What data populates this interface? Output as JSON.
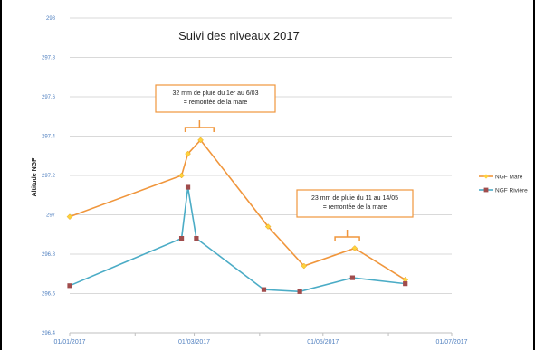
{
  "chart_data": {
    "type": "line",
    "title": "Suivi des niveaux 2017",
    "xlabel": "",
    "ylabel": "Altitude NGF",
    "x_ticks": [
      "01/01/2017",
      "01/03/2017",
      "01/05/2017",
      "01/07/2017"
    ],
    "xlim": [
      "2017-01-01",
      "2017-07-01"
    ],
    "ylim": [
      296.4,
      298
    ],
    "y_ticks": [
      "296.4",
      "296.6",
      "296.8",
      "297",
      "297.2",
      "297.4",
      "297.6",
      "297.8",
      "298"
    ],
    "grid": true,
    "legend_position": "right",
    "series": [
      {
        "name": "NGF Mare",
        "color": "#F0963C",
        "marker_color": "#FFD23C",
        "marker": "diamond",
        "points": [
          {
            "x": "2017-01-01",
            "y": 296.99
          },
          {
            "x": "2017-02-23",
            "y": 297.2
          },
          {
            "x": "2017-02-26",
            "y": 297.31
          },
          {
            "x": "2017-03-04",
            "y": 297.38
          },
          {
            "x": "2017-04-05",
            "y": 296.94
          },
          {
            "x": "2017-04-22",
            "y": 296.74
          },
          {
            "x": "2017-05-16",
            "y": 296.83
          },
          {
            "x": "2017-06-09",
            "y": 296.67
          }
        ]
      },
      {
        "name": "NGF Rivière",
        "color": "#4BACC6",
        "marker_color": "#A04C4C",
        "marker": "square",
        "points": [
          {
            "x": "2017-01-01",
            "y": 296.64
          },
          {
            "x": "2017-02-23",
            "y": 296.88
          },
          {
            "x": "2017-02-26",
            "y": 297.14
          },
          {
            "x": "2017-03-02",
            "y": 296.88
          },
          {
            "x": "2017-04-03",
            "y": 296.62
          },
          {
            "x": "2017-04-20",
            "y": 296.61
          },
          {
            "x": "2017-05-15",
            "y": 296.68
          },
          {
            "x": "2017-06-09",
            "y": 296.65
          }
        ]
      }
    ],
    "annotations": [
      {
        "lines": [
          "32 mm de pluie  du 1er au 6/03",
          "= remontée de la mare"
        ],
        "range": [
          "2017-03-01",
          "2017-03-06"
        ],
        "color": "#F0963C"
      },
      {
        "lines": [
          "23 mm de pluie  du 11 au 14/05",
          "= remontée de la mare"
        ],
        "range": [
          "2017-05-11",
          "2017-05-14"
        ],
        "color": "#F0963C"
      }
    ]
  }
}
